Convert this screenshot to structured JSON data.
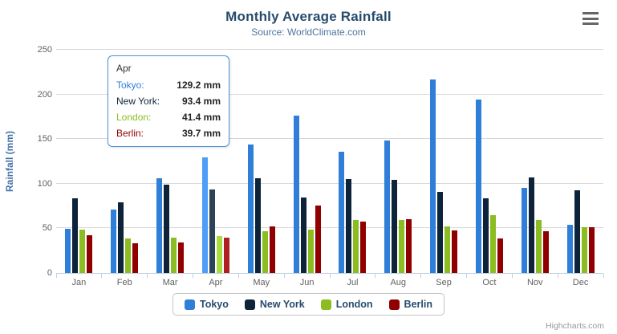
{
  "header": {
    "title": "Monthly Average Rainfall",
    "subtitle": "Source: WorldClimate.com"
  },
  "chart_data": {
    "type": "bar",
    "title": "Monthly Average Rainfall",
    "subtitle": "Source: WorldClimate.com",
    "xlabel": "",
    "ylabel": "Rainfall (mm)",
    "ylim": [
      0,
      250
    ],
    "yticks": [
      0,
      50,
      100,
      150,
      200,
      250
    ],
    "grid": true,
    "legend_position": "bottom",
    "categories": [
      "Jan",
      "Feb",
      "Mar",
      "Apr",
      "May",
      "Jun",
      "Jul",
      "Aug",
      "Sep",
      "Oct",
      "Nov",
      "Dec"
    ],
    "series": [
      {
        "name": "Tokyo",
        "color": "#2f7ed8",
        "values": [
          49.9,
          71.5,
          106.4,
          129.2,
          144.0,
          176.0,
          135.6,
          148.5,
          216.4,
          194.1,
          95.6,
          54.4
        ]
      },
      {
        "name": "New York",
        "color": "#0d233a",
        "values": [
          83.6,
          78.8,
          98.5,
          93.4,
          106.0,
          84.5,
          105.0,
          104.3,
          91.2,
          83.5,
          106.6,
          92.3
        ]
      },
      {
        "name": "London",
        "color": "#8bbc21",
        "values": [
          48.9,
          38.8,
          39.3,
          41.4,
          47.0,
          48.3,
          59.0,
          59.6,
          52.4,
          65.2,
          59.3,
          51.2
        ]
      },
      {
        "name": "Berlin",
        "color": "#910000",
        "values": [
          42.4,
          33.2,
          34.5,
          39.7,
          52.6,
          75.5,
          57.4,
          60.4,
          47.6,
          39.1,
          46.8,
          51.1
        ]
      }
    ],
    "hovered_category_index": 3
  },
  "tooltip": {
    "header": "Apr",
    "rows": [
      {
        "label": "Tokyo:",
        "value": "129.2 mm"
      },
      {
        "label": "New York:",
        "value": "93.4 mm"
      },
      {
        "label": "London:",
        "value": "41.4 mm"
      },
      {
        "label": "Berlin:",
        "value": "39.7 mm"
      }
    ]
  },
  "credits": {
    "label": "Highcharts.com"
  },
  "icons": {
    "menu": "hamburger-menu"
  },
  "colors": {
    "title": "#274b6d",
    "subtitle": "#4d759e",
    "y_axis_title": "#4572a7",
    "tick_label": "#606060",
    "gridline": "#d8d8d8",
    "axis_line": "#c0d0e0",
    "tooltip_border": "#4a90d9",
    "legend_label": "#274b6d",
    "credits": "#999999"
  }
}
